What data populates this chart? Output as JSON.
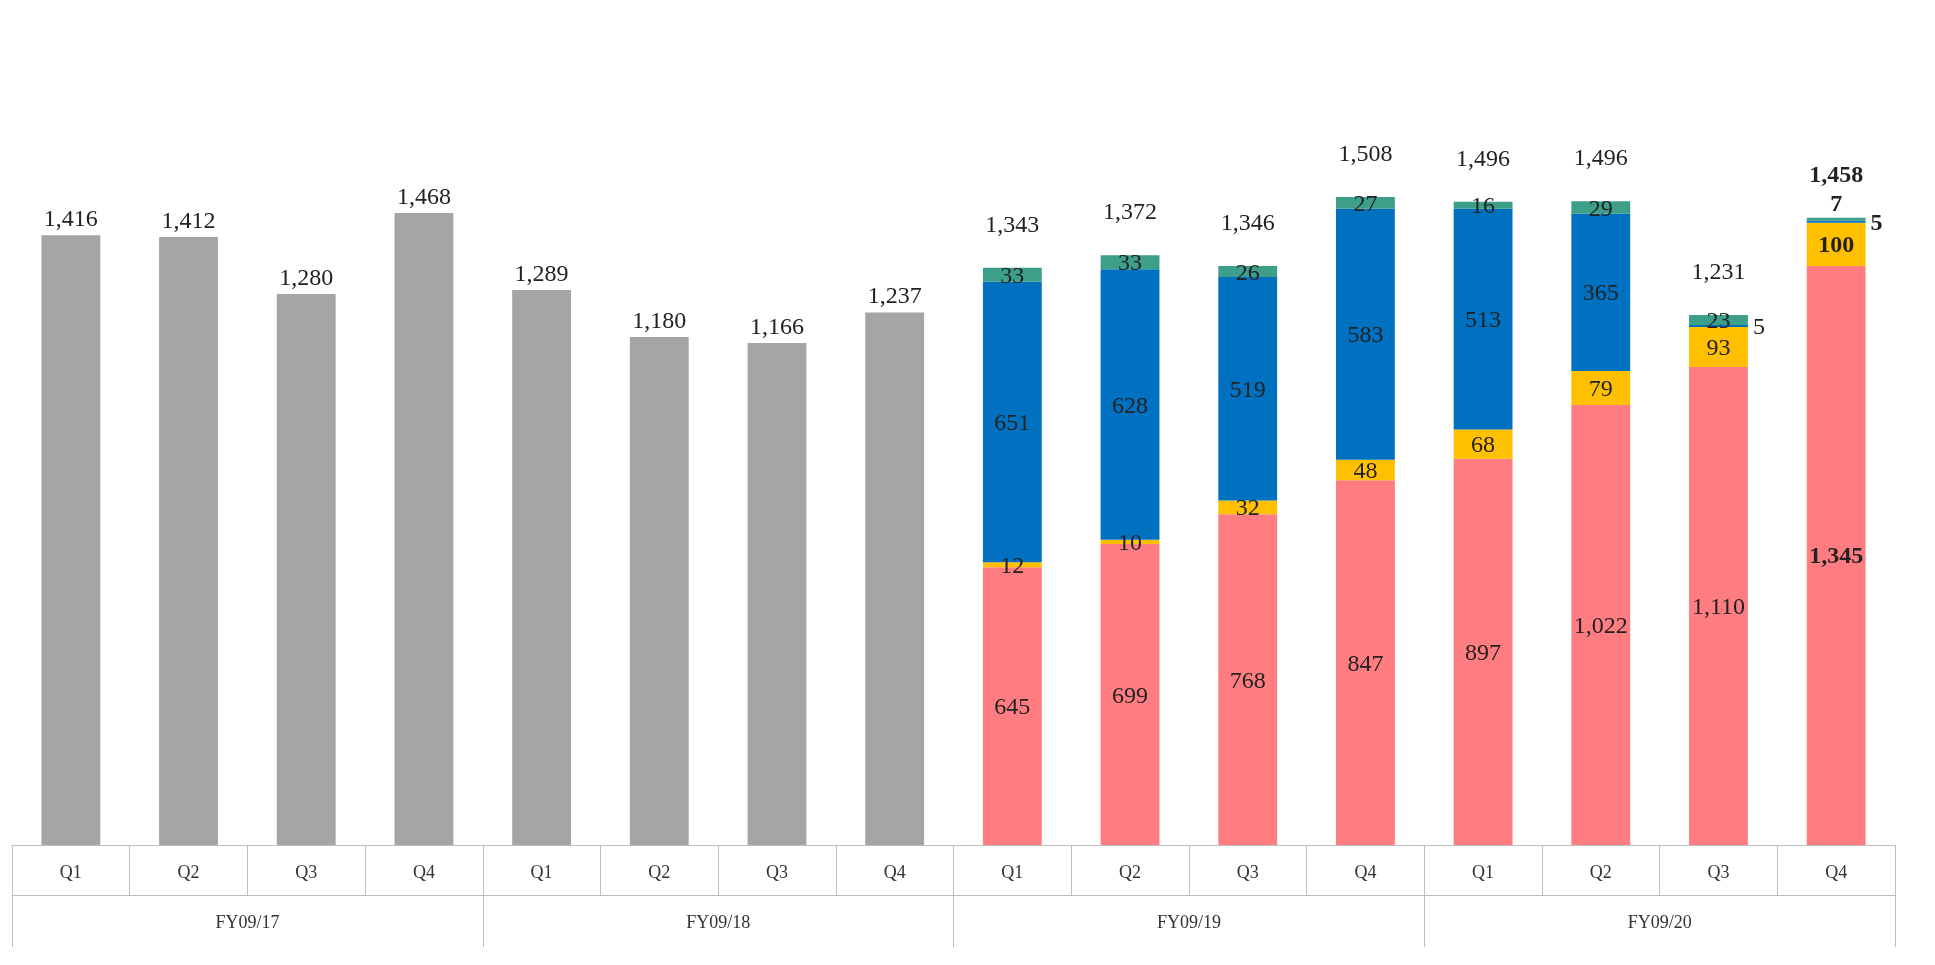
{
  "chart_data": {
    "type": "bar",
    "stacked": true,
    "grid": false,
    "categories": [
      "Q1",
      "Q2",
      "Q3",
      "Q4",
      "Q1",
      "Q2",
      "Q3",
      "Q4",
      "Q1",
      "Q2",
      "Q3",
      "Q4",
      "Q1",
      "Q2",
      "Q3",
      "Q4"
    ],
    "annotations": [
      "FY09/17",
      "FY09/18",
      "FY09/19",
      "FY09/20"
    ],
    "series": [
      {
        "color": "#a5a5a5",
        "values": [
          1416,
          1412,
          1280,
          1468,
          1289,
          1180,
          1166,
          1237,
          null,
          null,
          null,
          null,
          null,
          null,
          null,
          null
        ],
        "value_labels": [
          "1,416",
          "1,412",
          "1,280",
          "1,468",
          "1,289",
          "1,180",
          "1,166",
          "1,237",
          null,
          null,
          null,
          null,
          null,
          null,
          null,
          null
        ]
      },
      {
        "color": "#ff7c80",
        "values": [
          null,
          null,
          null,
          null,
          null,
          null,
          null,
          null,
          645,
          699,
          768,
          847,
          897,
          1022,
          1110,
          1345
        ],
        "value_labels": [
          null,
          null,
          null,
          null,
          null,
          null,
          null,
          null,
          "645",
          "699",
          "768",
          "847",
          "897",
          "1,022",
          "1,110",
          "1,345"
        ]
      },
      {
        "color": "#ffc000",
        "values": [
          null,
          null,
          null,
          null,
          null,
          null,
          null,
          null,
          12,
          10,
          32,
          48,
          68,
          79,
          93,
          100
        ],
        "value_labels": [
          null,
          null,
          null,
          null,
          null,
          null,
          null,
          null,
          "12",
          "10",
          "32",
          "48",
          "68",
          "79",
          "93",
          "100"
        ]
      },
      {
        "color": "#0070c0",
        "values": [
          null,
          null,
          null,
          null,
          null,
          null,
          null,
          null,
          651,
          628,
          519,
          583,
          513,
          365,
          5,
          5
        ],
        "value_labels": [
          null,
          null,
          null,
          null,
          null,
          null,
          null,
          null,
          "651",
          "628",
          "519",
          "583",
          "513",
          "365",
          "5",
          "5"
        ]
      },
      {
        "color": "#3d9e8a",
        "values": [
          null,
          null,
          null,
          null,
          null,
          null,
          null,
          null,
          33,
          33,
          26,
          27,
          16,
          29,
          23,
          7
        ],
        "value_labels": [
          null,
          null,
          null,
          null,
          null,
          null,
          null,
          null,
          "33",
          "33",
          "26",
          "27",
          "16",
          "29",
          "23",
          "7"
        ]
      }
    ],
    "totals": [
      null,
      null,
      null,
      null,
      null,
      null,
      null,
      null,
      "1,343",
      "1,372",
      "1,346",
      "1,508",
      "1,496",
      "1,496",
      "1,231",
      "1,458"
    ]
  }
}
